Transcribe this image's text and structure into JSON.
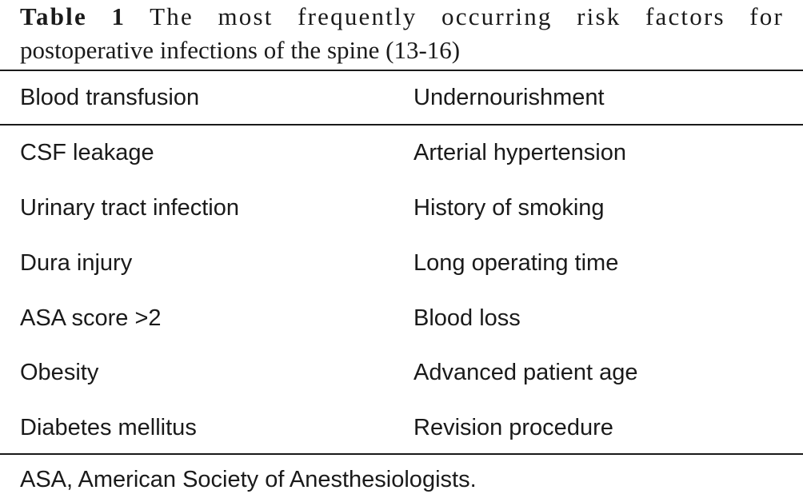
{
  "caption": {
    "label": "Table 1",
    "line1_rest": "The most frequently occurring risk factors for",
    "line2": "postoperative infections of the spine (13-16)"
  },
  "table": {
    "header": [
      "Blood transfusion",
      "Undernourishment"
    ],
    "rows": [
      [
        "CSF leakage",
        "Arterial hypertension"
      ],
      [
        "Urinary tract infection",
        "History of smoking"
      ],
      [
        "Dura injury",
        "Long operating time"
      ],
      [
        "ASA score >2",
        "Blood loss"
      ],
      [
        "Obesity",
        "Advanced patient age"
      ],
      [
        "Diabetes mellitus",
        "Revision procedure"
      ]
    ]
  },
  "footnote": "ASA, American Society of Anesthesiologists."
}
